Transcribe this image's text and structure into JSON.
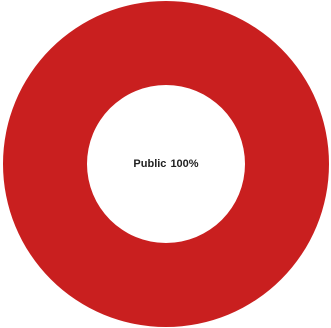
{
  "chart_data": {
    "type": "donut",
    "categories": [
      "Public"
    ],
    "values": [
      100
    ],
    "value_labels": [
      "100%"
    ],
    "colors": [
      "#c91f1f"
    ]
  }
}
